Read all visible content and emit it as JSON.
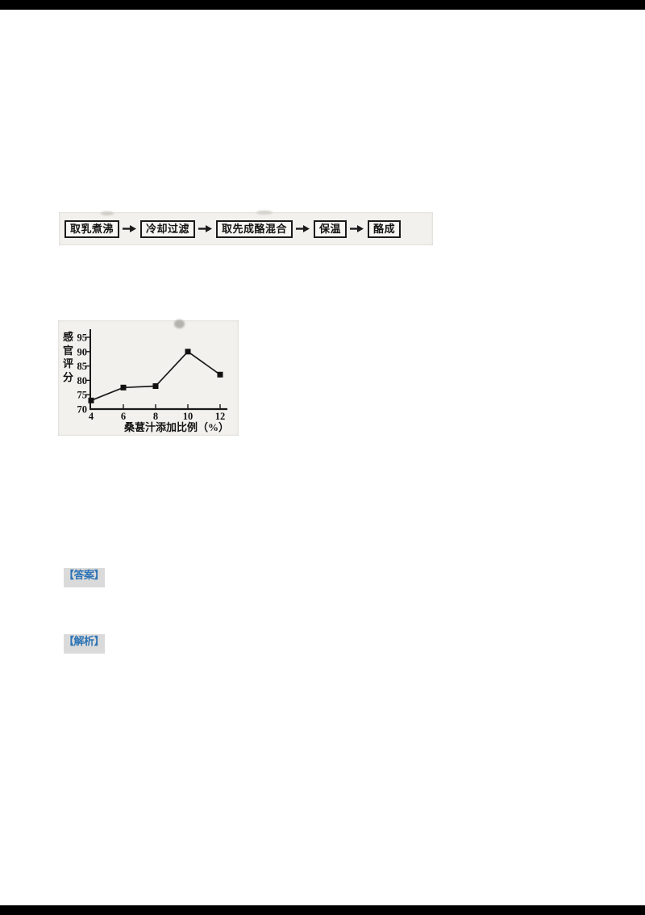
{
  "page": {
    "paper_color": "#ffffff",
    "border_color": "#000000",
    "scan_background": "#f2f1ed"
  },
  "flowchart": {
    "steps": [
      "取乳煮沸",
      "冷却过滤",
      "取先成酪混合",
      "保温",
      "酪成"
    ],
    "arrow_icon": "right-arrow"
  },
  "badges": {
    "answer": {
      "label": "【答案】",
      "color": "#2e74b5"
    },
    "analysis": {
      "label": "【解析】",
      "color": "#2e74b5"
    }
  },
  "chart_data": {
    "type": "line",
    "x": [
      4,
      6,
      8,
      10,
      12
    ],
    "series": [
      {
        "name": "感官评分",
        "values": [
          73,
          77.5,
          78,
          90,
          82
        ]
      }
    ],
    "xlabel": "桑葚汁添加比例（%）",
    "ylabel": "感官评分",
    "xticks": [
      4,
      6,
      8,
      10,
      12
    ],
    "yticks": [
      70,
      75,
      80,
      85,
      90,
      95
    ],
    "ylim": [
      70,
      95
    ],
    "xlim": [
      4,
      12
    ],
    "grid": false,
    "legend": "none",
    "marker": "filled-square",
    "line_color": "#1a1a1a",
    "axis_color": "#1a1a1a"
  }
}
